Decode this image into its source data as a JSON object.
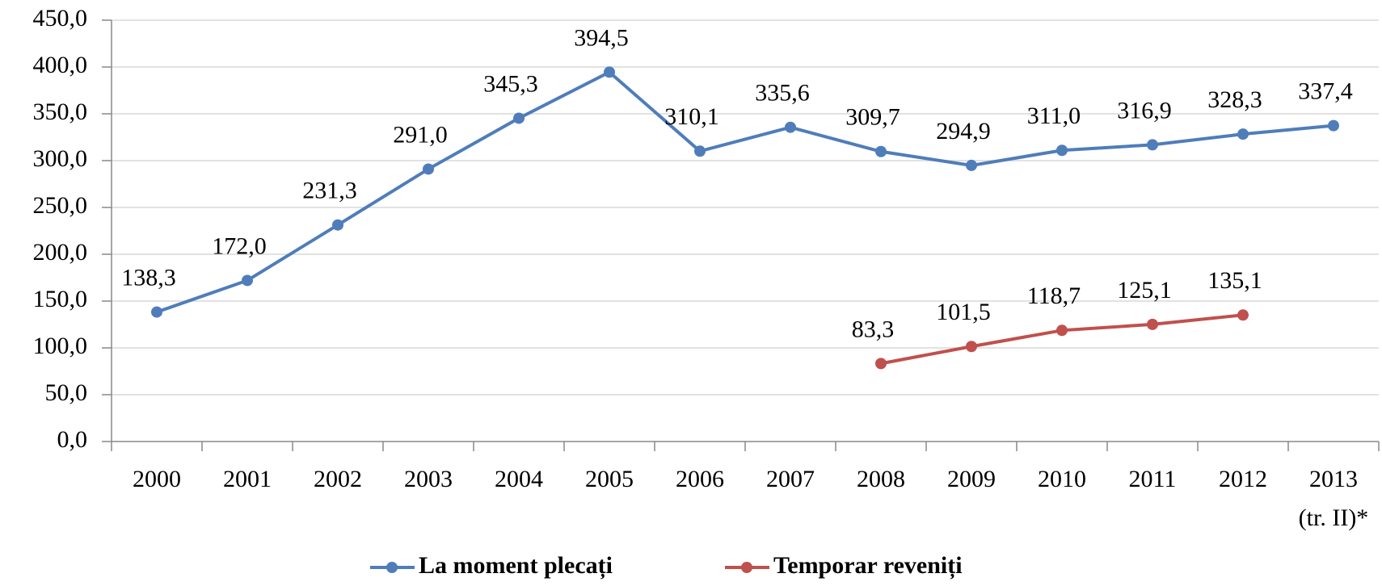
{
  "chart_data": {
    "type": "line",
    "categories": [
      "2000",
      "2001",
      "2002",
      "2003",
      "2004",
      "2005",
      "2006",
      "2007",
      "2008",
      "2009",
      "2010",
      "2011",
      "2012",
      "2013\n(tr. II)*"
    ],
    "series": [
      {
        "name": "La moment plecați",
        "color": "#4f7dba",
        "values": [
          138.3,
          172.0,
          231.3,
          291.0,
          345.3,
          394.5,
          310.1,
          335.6,
          309.7,
          294.9,
          311.0,
          316.9,
          328.3,
          337.4
        ],
        "value_labels": [
          "138,3",
          "172,0",
          "231,3",
          "291,0",
          "345,3",
          "394,5",
          "310,1",
          "335,6",
          "309,7",
          "294,9",
          "311,0",
          "316,9",
          "328,3",
          "337,4"
        ]
      },
      {
        "name": "Temporar reveniți",
        "color": "#c0504d",
        "values": [
          null,
          null,
          null,
          null,
          null,
          null,
          null,
          null,
          83.3,
          101.5,
          118.7,
          125.1,
          135.1,
          null
        ],
        "value_labels": [
          null,
          null,
          null,
          null,
          null,
          null,
          null,
          null,
          "83,3",
          "101,5",
          "118,7",
          "125,1",
          "135,1",
          null
        ]
      }
    ],
    "ylim": [
      0,
      450
    ],
    "yticks": [
      {
        "value": 0,
        "label": "0,0"
      },
      {
        "value": 50,
        "label": "50,0"
      },
      {
        "value": 100,
        "label": "100,0"
      },
      {
        "value": 150,
        "label": "150,0"
      },
      {
        "value": 200,
        "label": "200,0"
      },
      {
        "value": 250,
        "label": "250,0"
      },
      {
        "value": 300,
        "label": "300,0"
      },
      {
        "value": 350,
        "label": "350,0"
      },
      {
        "value": 400,
        "label": "400,0"
      },
      {
        "value": 450,
        "label": "450,0"
      }
    ],
    "grid": true,
    "legend": "bottom"
  }
}
